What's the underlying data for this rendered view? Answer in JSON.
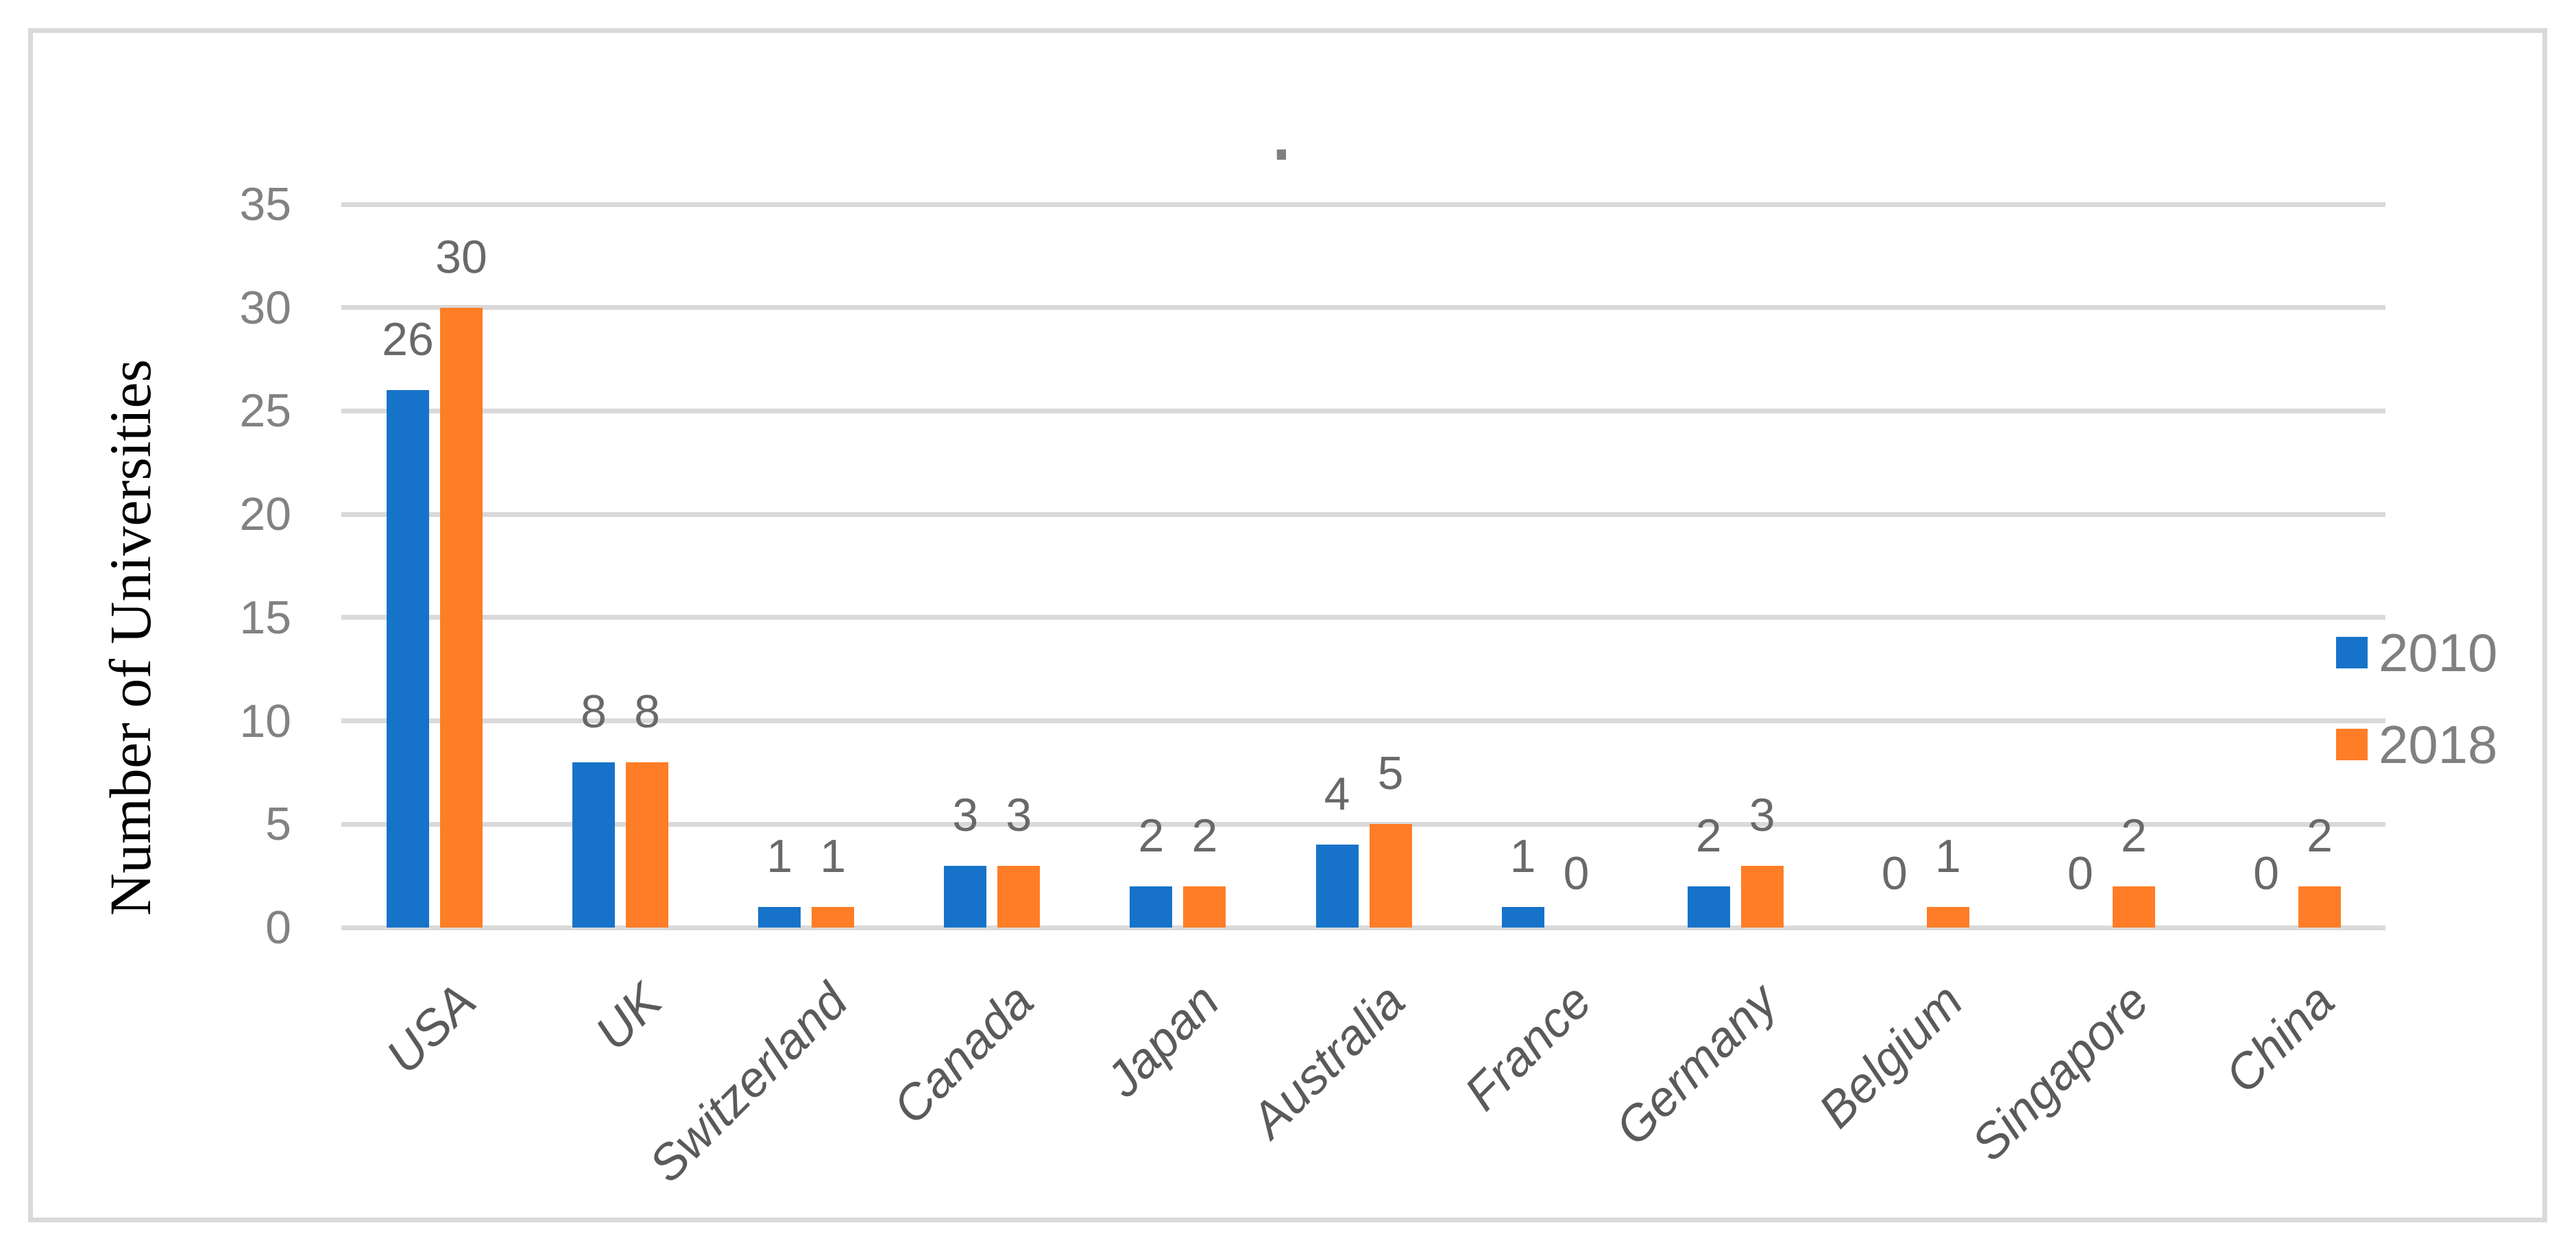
{
  "chart": {
    "title": ".",
    "y_axis_title": "Number of Universities"
  },
  "colors": {
    "series_2010": "#1673C9",
    "series_2018": "#FF7D26",
    "gridline": "#D9D9D9",
    "frame": "#D9D9D9",
    "tick_label": "#828282",
    "data_label": "#696969",
    "category_label": "#5A5A5A",
    "legend_label": "#808080",
    "axis_title": "#000000",
    "title_dot": "#808080"
  },
  "chart_data": {
    "type": "bar",
    "title": ".",
    "categories": [
      "USA",
      "UK",
      "Switzerland",
      "Canada",
      "Japan",
      "Australia",
      "France",
      "Germany",
      "Belgium",
      "Singapore",
      "China"
    ],
    "series": [
      {
        "name": "2010",
        "color": "#1673C9",
        "values": [
          26,
          8,
          1,
          3,
          2,
          4,
          1,
          2,
          0,
          0,
          0
        ]
      },
      {
        "name": "2018",
        "color": "#FF7D26",
        "values": [
          30,
          8,
          1,
          3,
          2,
          5,
          0,
          3,
          1,
          2,
          2
        ]
      }
    ],
    "ylabel": "Number of Universities",
    "xlabel": "",
    "ylim": [
      0,
      35
    ],
    "yticks": [
      0,
      5,
      10,
      15,
      20,
      25,
      30,
      35
    ],
    "grid": true,
    "data_labels": true,
    "legend_position": "right"
  }
}
